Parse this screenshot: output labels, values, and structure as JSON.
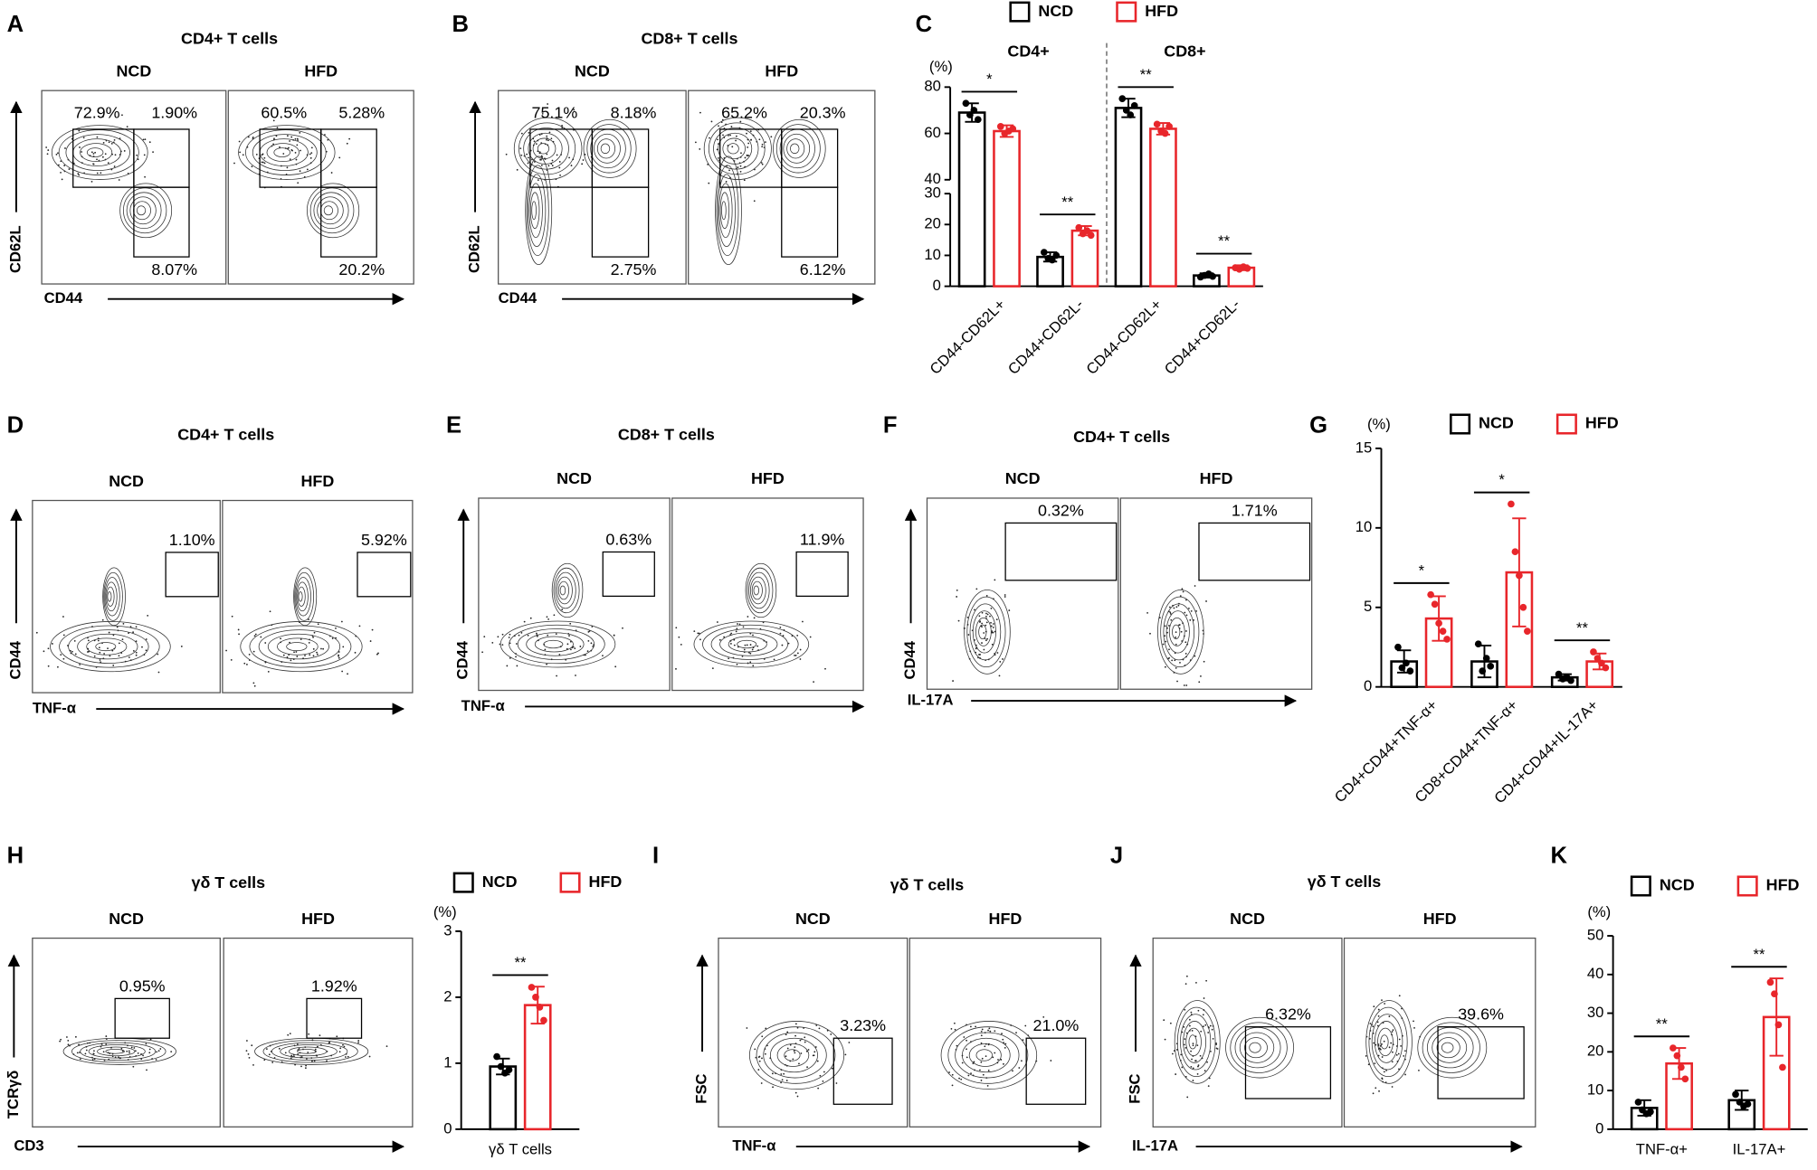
{
  "panels": [
    {
      "letter": "A",
      "title": "CD4+ T cells",
      "x_label": "CD44",
      "y_label": "CD62L",
      "samples": [
        {
          "name": "NCD",
          "gates": [
            "72.9%",
            "1.90%",
            "8.07%"
          ]
        },
        {
          "name": "HFD",
          "gates": [
            "60.5%",
            "5.28%",
            "20.2%"
          ]
        }
      ]
    },
    {
      "letter": "B",
      "title": "CD8+ T cells",
      "x_label": "CD44",
      "y_label": "CD62L",
      "samples": [
        {
          "name": "NCD",
          "gates": [
            "75.1%",
            "8.18%",
            "2.75%"
          ]
        },
        {
          "name": "HFD",
          "gates": [
            "65.2%",
            "20.3%",
            "6.12%"
          ]
        }
      ]
    },
    {
      "letter": "D",
      "title": "CD4+ T cells",
      "x_label": "TNF-α",
      "y_label": "CD44",
      "samples": [
        {
          "name": "NCD",
          "gates": [
            "1.10%"
          ]
        },
        {
          "name": "HFD",
          "gates": [
            "5.92%"
          ]
        }
      ]
    },
    {
      "letter": "E",
      "title": "CD8+ T cells",
      "x_label": "TNF-α",
      "y_label": "CD44",
      "samples": [
        {
          "name": "NCD",
          "gates": [
            "0.63%"
          ]
        },
        {
          "name": "HFD",
          "gates": [
            "11.9%"
          ]
        }
      ]
    },
    {
      "letter": "F",
      "title": "CD4+ T cells",
      "x_label": "IL-17A",
      "y_label": "CD44",
      "samples": [
        {
          "name": "NCD",
          "gates": [
            "0.32%"
          ]
        },
        {
          "name": "HFD",
          "gates": [
            "1.71%"
          ]
        }
      ]
    },
    {
      "letter": "H",
      "title": "γδ T cells",
      "x_label": "CD3",
      "y_label": "TCRγδ",
      "samples": [
        {
          "name": "NCD",
          "gates": [
            "0.95%"
          ]
        },
        {
          "name": "HFD",
          "gates": [
            "1.92%"
          ]
        }
      ]
    },
    {
      "letter": "I",
      "title": "γδ T cells",
      "x_label": "TNF-α",
      "y_label": "FSC",
      "samples": [
        {
          "name": "NCD",
          "gates": [
            "3.23%"
          ]
        },
        {
          "name": "HFD",
          "gates": [
            "21.0%"
          ]
        }
      ]
    },
    {
      "letter": "J",
      "title": "γδ T cells",
      "x_label": "IL-17A",
      "y_label": "FSC",
      "samples": [
        {
          "name": "NCD",
          "gates": [
            "6.32%"
          ]
        },
        {
          "name": "HFD",
          "gates": [
            "39.6%"
          ]
        }
      ]
    }
  ],
  "chart_data": [
    {
      "type": "bar",
      "letter": "C",
      "y_label": "(%)",
      "group_labels": [
        "CD4+",
        "CD8+"
      ],
      "categories": [
        "CD44-CD62L+",
        "CD44+CD62L-",
        "CD44-CD62L+",
        "CD44+CD62L-"
      ],
      "xtick_rotation": 45,
      "ylim": [
        0,
        80
      ],
      "yticks": [
        0,
        10,
        20,
        30,
        40,
        60,
        80
      ],
      "axis_break": [
        30,
        40
      ],
      "series": [
        {
          "name": "NCD",
          "color": "#000000",
          "values": [
            69,
            9.5,
            71,
            3.5
          ],
          "errors": [
            4,
            1.5,
            4,
            0.7
          ],
          "points": [
            [
              73,
              68,
              70,
              66
            ],
            [
              11,
              9,
              8.5,
              10
            ],
            [
              75,
              70,
              68,
              72
            ],
            [
              3,
              3.5,
              4,
              3.2
            ]
          ]
        },
        {
          "name": "HFD",
          "color": "#e8262b",
          "values": [
            61,
            18,
            62,
            6
          ],
          "errors": [
            2.5,
            1.5,
            2.5,
            0.8
          ],
          "points": [
            [
              63,
              60,
              61,
              62
            ],
            [
              19,
              17,
              18,
              16.5
            ],
            [
              64,
              61,
              60,
              63
            ],
            [
              6,
              5.5,
              6.3,
              5.8
            ]
          ]
        }
      ],
      "significance": [
        "*",
        "**",
        "**",
        "**"
      ]
    },
    {
      "type": "bar",
      "letter": "G",
      "y_label": "(%)",
      "categories": [
        "CD4+CD44+TNF-α+",
        "CD8+CD44+TNF-α+",
        "CD4+CD44+IL-17A+"
      ],
      "xtick_rotation": 45,
      "ylim": [
        0,
        15
      ],
      "yticks": [
        0,
        5,
        10,
        15
      ],
      "series": [
        {
          "name": "NCD",
          "color": "#000000",
          "values": [
            1.6,
            1.6,
            0.6
          ],
          "errors": [
            0.7,
            1.0,
            0.2
          ],
          "points": [
            [
              2.5,
              1.2,
              1.5,
              1.0
            ],
            [
              2.7,
              1.0,
              1.8,
              1.3
            ],
            [
              0.8,
              0.5,
              0.6,
              0.4
            ]
          ]
        },
        {
          "name": "HFD",
          "color": "#e8262b",
          "values": [
            4.3,
            7.2,
            1.6
          ],
          "errors": [
            1.4,
            3.4,
            0.5
          ],
          "points": [
            [
              5.8,
              5.2,
              4.0,
              3.5,
              3.0
            ],
            [
              11.5,
              8.5,
              7.0,
              5.0,
              3.5
            ],
            [
              2.2,
              1.8,
              1.5,
              1.2
            ]
          ]
        }
      ],
      "significance": [
        "*",
        "*",
        "**"
      ]
    },
    {
      "type": "bar",
      "y_label": "(%)",
      "categories": [
        "γδ T cells"
      ],
      "ylim": [
        0,
        3
      ],
      "yticks": [
        0,
        1,
        2,
        3
      ],
      "series": [
        {
          "name": "NCD",
          "color": "#000000",
          "values": [
            0.95
          ],
          "errors": [
            0.12
          ],
          "points": [
            [
              1.1,
              0.95,
              0.85,
              0.9
            ]
          ]
        },
        {
          "name": "HFD",
          "color": "#e8262b",
          "values": [
            1.88
          ],
          "errors": [
            0.28
          ],
          "points": [
            [
              2.15,
              2.0,
              1.85,
              1.65
            ]
          ]
        }
      ],
      "significance": [
        "**"
      ]
    },
    {
      "type": "bar",
      "letter": "K",
      "y_label": "(%)",
      "categories": [
        "TNF-α+",
        "IL-17A+"
      ],
      "ylim": [
        0,
        50
      ],
      "yticks": [
        0,
        10,
        20,
        30,
        40,
        50
      ],
      "series": [
        {
          "name": "NCD",
          "color": "#000000",
          "values": [
            5.5,
            7.5
          ],
          "errors": [
            2,
            2.5
          ],
          "points": [
            [
              7,
              5,
              4,
              4.5
            ],
            [
              9,
              7,
              6,
              6.5
            ]
          ]
        },
        {
          "name": "HFD",
          "color": "#e8262b",
          "values": [
            17,
            29
          ],
          "errors": [
            4,
            10
          ],
          "points": [
            [
              21,
              19,
              16,
              13
            ],
            [
              38,
              35,
              27,
              16
            ]
          ]
        }
      ],
      "significance": [
        "**",
        "**"
      ]
    }
  ]
}
